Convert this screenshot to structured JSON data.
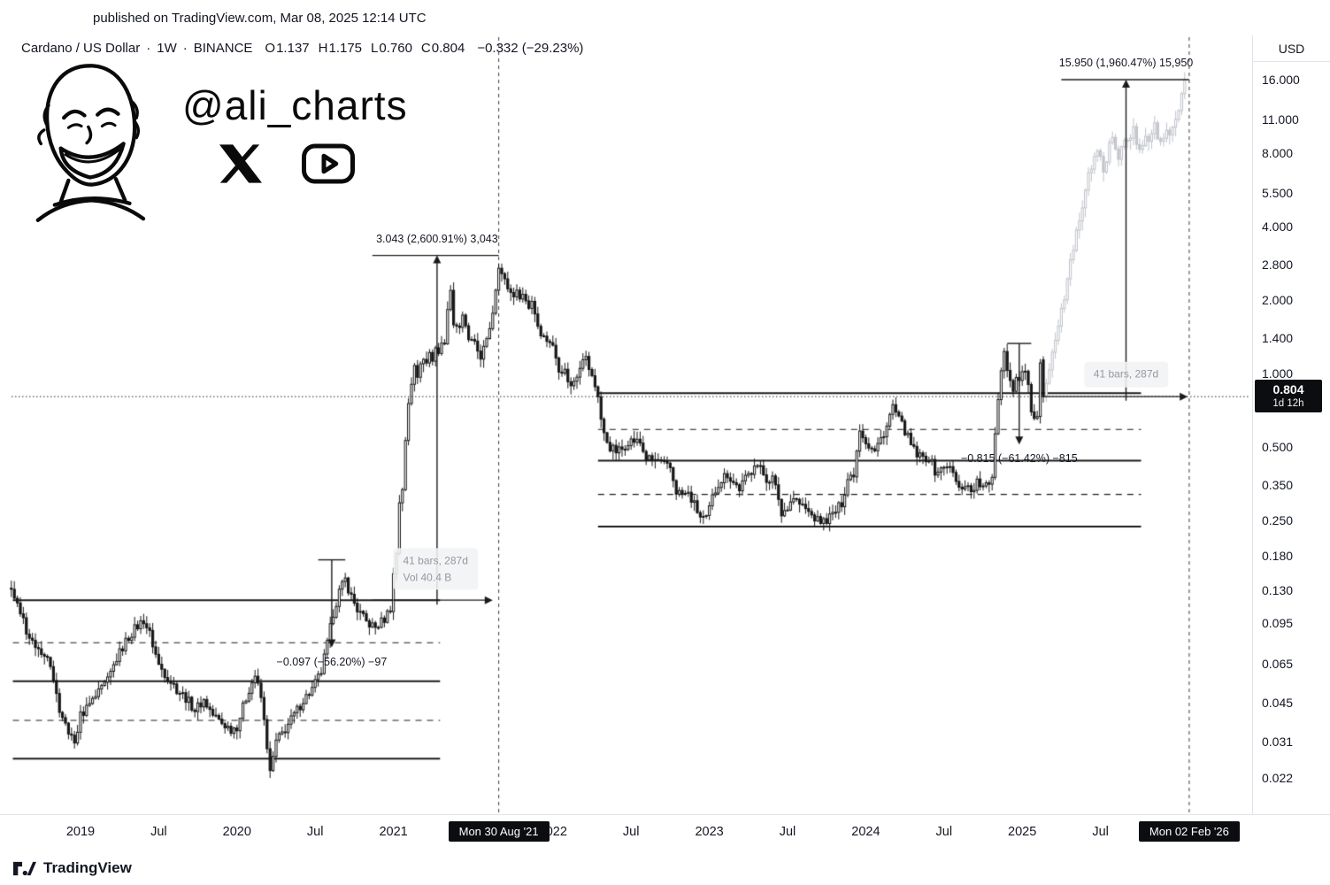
{
  "publish_bar": {
    "text": "published on TradingView.com, Mar 08, 2025 12:14 UTC"
  },
  "header": {
    "symbol": "Cardano / US Dollar",
    "sep": "·",
    "interval": "1W",
    "exchange": "BINANCE",
    "ohlc": [
      {
        "k": "O",
        "v": "1.137"
      },
      {
        "k": "H",
        "v": "1.175"
      },
      {
        "k": "L",
        "v": "0.760"
      },
      {
        "k": "C",
        "v": "0.804"
      }
    ],
    "change": "−0.332 (−29.23%)"
  },
  "watermark": {
    "handle": "@ali_charts",
    "icons": [
      "face-sketch",
      "x-logo",
      "youtube-logo"
    ]
  },
  "price_axis": {
    "currency": "USD",
    "ticks": [
      "16.000",
      "11.000",
      "8.000",
      "5.500",
      "4.000",
      "2.800",
      "2.000",
      "1.400",
      "1.000",
      "0.500",
      "0.350",
      "0.250",
      "0.180",
      "0.130",
      "0.095",
      "0.065",
      "0.045",
      "0.031",
      "0.022"
    ],
    "last_price": "0.804",
    "countdown": "1d 12h"
  },
  "time_axis": {
    "ticks": [
      {
        "label": "2019",
        "week": 0
      },
      {
        "label": "Jul",
        "week": 26
      },
      {
        "label": "2020",
        "week": 52
      },
      {
        "label": "Jul",
        "week": 78
      },
      {
        "label": "2021",
        "week": 104
      },
      {
        "label": "2022",
        "week": 157
      },
      {
        "label": "Jul",
        "week": 183
      },
      {
        "label": "2023",
        "week": 209
      },
      {
        "label": "Jul",
        "week": 235
      },
      {
        "label": "2024",
        "week": 261
      },
      {
        "label": "Jul",
        "week": 287
      },
      {
        "label": "2025",
        "week": 313
      },
      {
        "label": "Jul",
        "week": 339
      }
    ],
    "badges": [
      {
        "label": "Mon 30 Aug '21",
        "week": 139
      },
      {
        "label": "Mon 02 Feb '26",
        "week": 368.5
      }
    ]
  },
  "footer": {
    "brand": "TradingView"
  },
  "annotations": {
    "measures": [
      {
        "text": "3.043 (2,600.91%) 3,043",
        "dir": "up",
        "cap_price": 3.043,
        "base_price": 0.113,
        "cap_week_from": 97,
        "cap_week_to": 139,
        "arrow_week": 118.5
      },
      {
        "text": "15.950 (1,960.47%) 15,950",
        "dir": "up",
        "cap_price": 15.95,
        "base_price": 0.774,
        "cap_week_from": 326,
        "cap_week_to": 368.5,
        "arrow_week": 347.5
      },
      {
        "text": "−0.097 (−56.20%) −97",
        "dir": "down",
        "cap_price": 0.1726,
        "base_price": 0.0756,
        "cap_week_from": 79,
        "cap_week_to": 88,
        "arrow_week": 83.5
      },
      {
        "text": "−0.815 (−61.42%) −815",
        "dir": "down",
        "cap_price": 1.327,
        "base_price": 0.512,
        "cap_week_from": 308,
        "cap_week_to": 316,
        "arrow_week": 312
      }
    ],
    "range_tooltips": [
      {
        "week": 118,
        "price": 0.158,
        "lines": [
          "41 bars, 287d",
          "Vol 40.4 B"
        ]
      },
      {
        "week": 347.5,
        "price": 0.99,
        "lines": [
          "41 bars, 287d"
        ]
      }
    ],
    "range_arrows": [
      {
        "price": 0.118,
        "week_from": 97,
        "week_to": 137
      },
      {
        "price": 0.804,
        "week_from": 320,
        "week_to": 368
      }
    ],
    "levels_left": {
      "solid": [
        0.118,
        0.055,
        0.0265
      ],
      "dashed": [
        0.079,
        0.038
      ],
      "week_from": -22.5,
      "week_to": 119.5
    },
    "levels_right": {
      "solid": [
        0.83,
        0.44,
        0.236
      ],
      "dashed": [
        0.59,
        0.32
      ],
      "week_from": 172,
      "week_to": 352.5
    },
    "vlines_weeks": [
      139,
      368.5
    ],
    "last_price_line": 0.804
  },
  "chart_data": {
    "type": "candlestick",
    "symbol": "Cardano / US Dollar",
    "interval": "1W",
    "exchange": "BINANCE",
    "scale": "log",
    "ylim": [
      0.018,
      17
    ],
    "y_ticks": [
      16.0,
      11.0,
      8.0,
      5.5,
      4.0,
      2.8,
      2.0,
      1.4,
      1.0,
      0.5,
      0.35,
      0.25,
      0.18,
      0.13,
      0.095,
      0.065,
      0.045,
      0.031,
      0.022
    ],
    "x_unit": "weeks since Jan 2019",
    "last_candle": {
      "open": 1.137,
      "high": 1.175,
      "low": 0.76,
      "close": 0.804
    },
    "price_anchors_weekly": [
      [
        -23,
        0.135
      ],
      [
        -20,
        0.105
      ],
      [
        -17,
        0.082
      ],
      [
        -14,
        0.074
      ],
      [
        -11,
        0.072
      ],
      [
        -9,
        0.054
      ],
      [
        -7,
        0.042
      ],
      [
        -4,
        0.034
      ],
      [
        -2,
        0.03
      ],
      [
        0,
        0.04
      ],
      [
        3,
        0.044
      ],
      [
        6,
        0.049
      ],
      [
        9,
        0.055
      ],
      [
        12,
        0.068
      ],
      [
        15,
        0.08
      ],
      [
        18,
        0.09
      ],
      [
        21,
        0.098
      ],
      [
        23,
        0.086
      ],
      [
        26,
        0.064
      ],
      [
        29,
        0.057
      ],
      [
        32,
        0.051
      ],
      [
        35,
        0.047
      ],
      [
        38,
        0.042
      ],
      [
        41,
        0.046
      ],
      [
        44,
        0.04
      ],
      [
        47,
        0.037
      ],
      [
        50,
        0.035
      ],
      [
        52,
        0.036
      ],
      [
        54,
        0.043
      ],
      [
        56,
        0.051
      ],
      [
        58,
        0.058
      ],
      [
        60,
        0.047
      ],
      [
        62,
        0.03
      ],
      [
        63,
        0.023
      ],
      [
        65,
        0.031
      ],
      [
        68,
        0.035
      ],
      [
        71,
        0.04
      ],
      [
        74,
        0.046
      ],
      [
        77,
        0.051
      ],
      [
        80,
        0.06
      ],
      [
        82,
        0.078
      ],
      [
        84,
        0.105
      ],
      [
        86,
        0.128
      ],
      [
        88,
        0.143
      ],
      [
        90,
        0.122
      ],
      [
        92,
        0.108
      ],
      [
        95,
        0.096
      ],
      [
        98,
        0.091
      ],
      [
        101,
        0.099
      ],
      [
        103,
        0.11
      ],
      [
        104,
        0.15
      ],
      [
        105,
        0.185
      ],
      [
        106,
        0.3
      ],
      [
        107,
        0.34
      ],
      [
        108,
        0.52
      ],
      [
        109,
        0.75
      ],
      [
        110,
        0.92
      ],
      [
        111,
        1.12
      ],
      [
        112,
        1.0
      ],
      [
        113,
        1.06
      ],
      [
        114,
        1.18
      ],
      [
        115,
        1.1
      ],
      [
        116,
        1.22
      ],
      [
        117,
        1.12
      ],
      [
        118,
        1.3
      ],
      [
        119,
        1.22
      ],
      [
        121,
        1.38
      ],
      [
        123,
        2.28
      ],
      [
        124,
        1.6
      ],
      [
        126,
        1.56
      ],
      [
        127,
        1.68
      ],
      [
        129,
        1.38
      ],
      [
        131,
        1.3
      ],
      [
        133,
        1.18
      ],
      [
        135,
        1.34
      ],
      [
        137,
        1.8
      ],
      [
        138,
        2.25
      ],
      [
        139,
        2.82
      ],
      [
        140,
        2.55
      ],
      [
        141,
        2.38
      ],
      [
        143,
        2.14
      ],
      [
        145,
        2.12
      ],
      [
        147,
        2.1
      ],
      [
        149,
        1.88
      ],
      [
        150,
        2.0
      ],
      [
        152,
        1.58
      ],
      [
        154,
        1.4
      ],
      [
        156,
        1.36
      ],
      [
        157,
        1.28
      ],
      [
        159,
        1.06
      ],
      [
        161,
        1.02
      ],
      [
        163,
        0.88
      ],
      [
        165,
        1.0
      ],
      [
        167,
        1.18
      ],
      [
        168,
        1.15
      ],
      [
        170,
        0.96
      ],
      [
        172,
        0.82
      ],
      [
        173,
        0.65
      ],
      [
        174,
        0.56
      ],
      [
        176,
        0.5
      ],
      [
        178,
        0.48
      ],
      [
        180,
        0.49
      ],
      [
        182,
        0.53
      ],
      [
        184,
        0.53
      ],
      [
        186,
        0.52
      ],
      [
        188,
        0.45
      ],
      [
        190,
        0.44
      ],
      [
        192,
        0.44
      ],
      [
        194,
        0.42
      ],
      [
        196,
        0.41
      ],
      [
        198,
        0.33
      ],
      [
        200,
        0.32
      ],
      [
        202,
        0.32
      ],
      [
        204,
        0.29
      ],
      [
        206,
        0.258
      ],
      [
        208,
        0.252
      ],
      [
        210,
        0.31
      ],
      [
        212,
        0.355
      ],
      [
        214,
        0.38
      ],
      [
        215,
        0.388
      ],
      [
        217,
        0.358
      ],
      [
        219,
        0.338
      ],
      [
        221,
        0.37
      ],
      [
        223,
        0.4
      ],
      [
        224,
        0.435
      ],
      [
        226,
        0.405
      ],
      [
        228,
        0.37
      ],
      [
        230,
        0.372
      ],
      [
        232,
        0.31
      ],
      [
        233,
        0.262
      ],
      [
        235,
        0.288
      ],
      [
        237,
        0.312
      ],
      [
        239,
        0.292
      ],
      [
        241,
        0.278
      ],
      [
        243,
        0.262
      ],
      [
        245,
        0.25
      ],
      [
        247,
        0.248
      ],
      [
        249,
        0.258
      ],
      [
        251,
        0.272
      ],
      [
        253,
        0.296
      ],
      [
        255,
        0.37
      ],
      [
        257,
        0.392
      ],
      [
        259,
        0.6
      ],
      [
        260,
        0.56
      ],
      [
        262,
        0.505
      ],
      [
        264,
        0.478
      ],
      [
        266,
        0.54
      ],
      [
        268,
        0.61
      ],
      [
        270,
        0.735
      ],
      [
        272,
        0.645
      ],
      [
        274,
        0.585
      ],
      [
        276,
        0.508
      ],
      [
        278,
        0.462
      ],
      [
        280,
        0.45
      ],
      [
        282,
        0.455
      ],
      [
        284,
        0.398
      ],
      [
        286,
        0.402
      ],
      [
        288,
        0.425
      ],
      [
        290,
        0.388
      ],
      [
        292,
        0.335
      ],
      [
        294,
        0.355
      ],
      [
        296,
        0.33
      ],
      [
        298,
        0.358
      ],
      [
        300,
        0.34
      ],
      [
        302,
        0.35
      ],
      [
        303,
        0.385
      ],
      [
        304,
        0.58
      ],
      [
        305,
        0.79
      ],
      [
        306,
        1.06
      ],
      [
        307,
        1.23
      ],
      [
        308,
        1.06
      ],
      [
        309,
        0.93
      ],
      [
        310,
        0.88
      ],
      [
        311,
        0.96
      ],
      [
        312,
        0.92
      ],
      [
        313,
        1.04
      ],
      [
        314,
        0.98
      ],
      [
        315,
        0.93
      ],
      [
        316,
        0.68
      ],
      [
        317,
        0.63
      ],
      [
        318,
        0.64
      ],
      [
        319,
        1.1
      ],
      [
        320,
        0.804
      ]
    ],
    "projection_anchors_weekly": [
      [
        321,
        0.95
      ],
      [
        323,
        1.2
      ],
      [
        325,
        1.6
      ],
      [
        327,
        2.1
      ],
      [
        329,
        2.8
      ],
      [
        331,
        3.7
      ],
      [
        333,
        4.9
      ],
      [
        335,
        6.4
      ],
      [
        337,
        7.8
      ],
      [
        338,
        8.4
      ],
      [
        339,
        7.4
      ],
      [
        340,
        6.9
      ],
      [
        341,
        7.7
      ],
      [
        342,
        8.5
      ],
      [
        343,
        9.3
      ],
      [
        344,
        8.4
      ],
      [
        345,
        7.7
      ],
      [
        346,
        8.5
      ],
      [
        347,
        9.4
      ],
      [
        348,
        8.6
      ],
      [
        349,
        9.2
      ],
      [
        350,
        10.1
      ],
      [
        351,
        9.1
      ],
      [
        352,
        8.3
      ],
      [
        353,
        9.0
      ],
      [
        354,
        9.8
      ],
      [
        355,
        8.9
      ],
      [
        356,
        9.6
      ],
      [
        357,
        10.4
      ],
      [
        358,
        9.5
      ],
      [
        359,
        8.7
      ],
      [
        360,
        9.5
      ],
      [
        361,
        10.3
      ],
      [
        362,
        9.4
      ],
      [
        363,
        10.2
      ],
      [
        364,
        11.0
      ],
      [
        365,
        12.2
      ],
      [
        366,
        13.6
      ],
      [
        367,
        15.9
      ]
    ]
  }
}
